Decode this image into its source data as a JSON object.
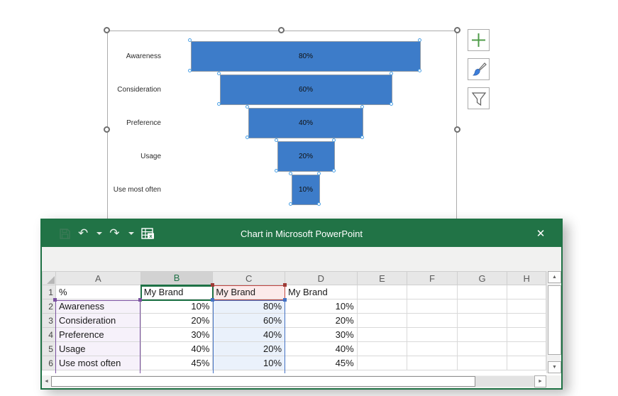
{
  "chart_data": {
    "type": "bar",
    "subtype": "funnel",
    "title": "",
    "categories": [
      "Awareness",
      "Consideration",
      "Preference",
      "Usage",
      "Use most often"
    ],
    "values": [
      80,
      60,
      40,
      20,
      10
    ],
    "data_labels": [
      "80%",
      "60%",
      "40%",
      "20%",
      "10%"
    ],
    "series_name": "My Brand",
    "xlim": [
      0,
      100
    ],
    "bar_color": "#3D7CC9",
    "legend": "none",
    "grid": "off"
  },
  "chart_tools": {
    "elements_label": "chart-elements",
    "styles_label": "chart-styles",
    "filters_label": "chart-filters"
  },
  "window": {
    "title": "Chart in Microsoft PowerPoint",
    "close_glyph": "✕",
    "undo_glyph": "↶",
    "redo_glyph": "↷"
  },
  "sheet": {
    "column_headers": [
      "A",
      "B",
      "C",
      "D",
      "E",
      "F",
      "G",
      "H"
    ],
    "selected_column": "B",
    "active_cell": "B1",
    "rows": [
      {
        "num": "1",
        "cells": [
          "%",
          "My Brand",
          "My Brand",
          "My Brand",
          "",
          "",
          "",
          ""
        ]
      },
      {
        "num": "2",
        "cells": [
          "Awareness",
          "10%",
          "80%",
          "10%",
          "",
          "",
          "",
          ""
        ]
      },
      {
        "num": "3",
        "cells": [
          "Consideration",
          "20%",
          "60%",
          "20%",
          "",
          "",
          "",
          ""
        ]
      },
      {
        "num": "4",
        "cells": [
          "Preference",
          "30%",
          "40%",
          "30%",
          "",
          "",
          "",
          ""
        ]
      },
      {
        "num": "5",
        "cells": [
          "Usage",
          "40%",
          "20%",
          "40%",
          "",
          "",
          "",
          ""
        ]
      },
      {
        "num": "6",
        "cells": [
          "Use most often",
          "45%",
          "10%",
          "45%",
          "",
          "",
          "",
          ""
        ]
      }
    ],
    "scroll": {
      "up_glyph": "▲",
      "down_glyph": "▼",
      "left_glyph": "◄",
      "right_glyph": "►"
    }
  },
  "colors": {
    "titlebar_green": "#217346",
    "bar_blue": "#3D7CC9",
    "category_range_purple": "#7B52A0",
    "values_range_blue": "#4472C4",
    "series_range_red": "#C14641",
    "active_cell_green": "#1E7145",
    "category_fill": "#F6F1FA",
    "values_fill": "#EAF1FB",
    "series_fill": "#FCEAEA"
  }
}
